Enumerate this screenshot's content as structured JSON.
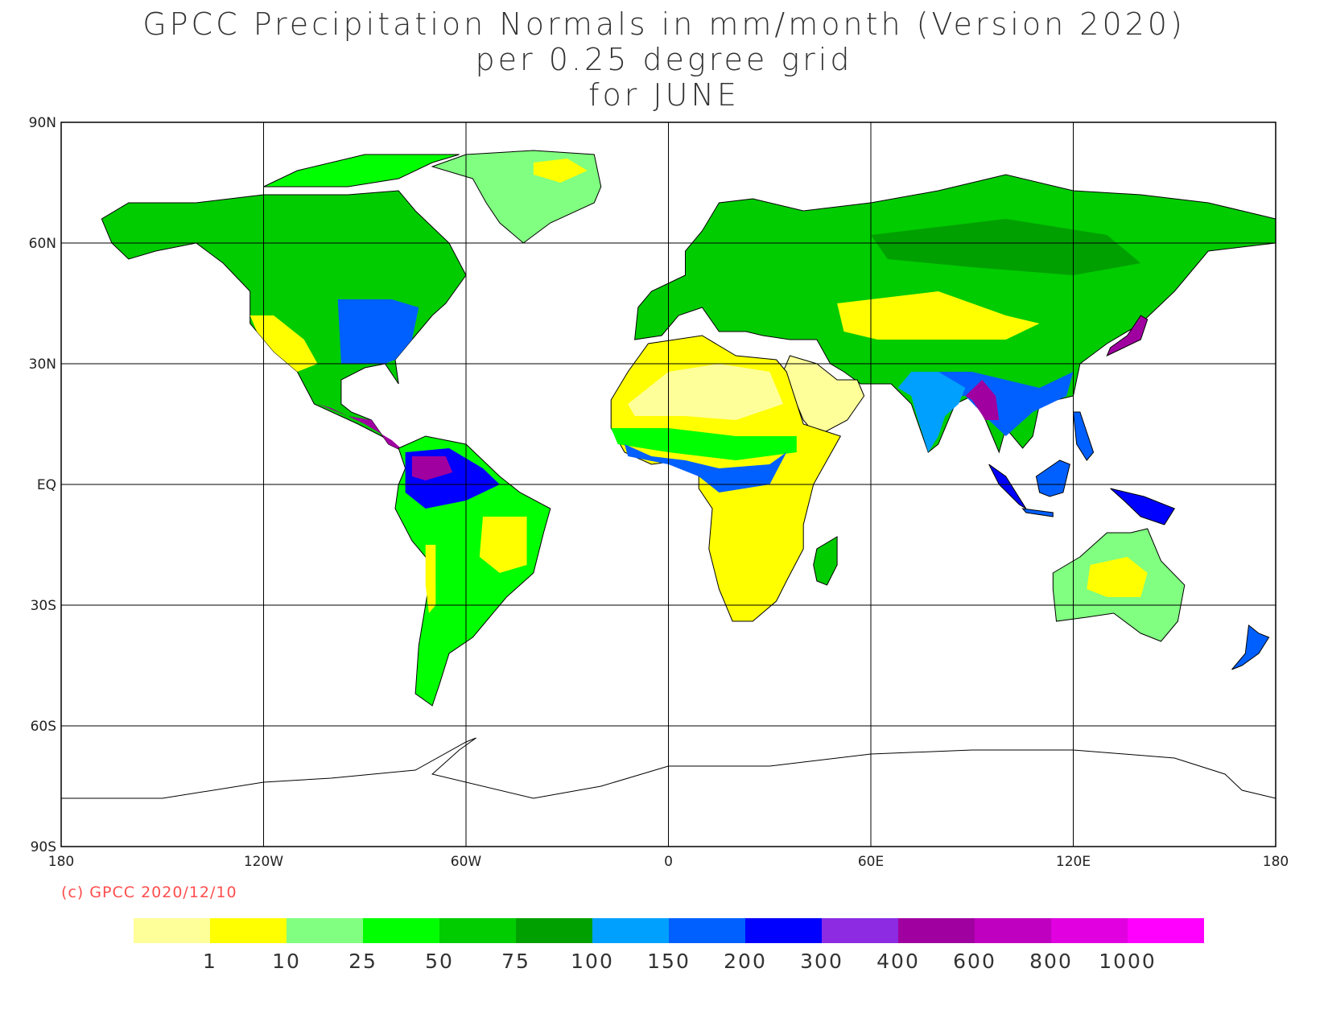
{
  "title": {
    "line1": "GPCC Precipitation Normals in mm/month (Version 2020)",
    "line2": "per 0.25 degree grid",
    "line3": "for JUNE"
  },
  "map": {
    "projection": "equirectangular",
    "lon_range": [
      -180,
      180
    ],
    "lat_range": [
      -90,
      90
    ],
    "lon_ticks": [
      {
        "lon": -180,
        "label": "180"
      },
      {
        "lon": -120,
        "label": "120W"
      },
      {
        "lon": -60,
        "label": "60W"
      },
      {
        "lon": 0,
        "label": "0"
      },
      {
        "lon": 60,
        "label": "60E"
      },
      {
        "lon": 120,
        "label": "120E"
      },
      {
        "lon": 180,
        "label": "180"
      }
    ],
    "lat_ticks": [
      {
        "lat": 90,
        "label": "90N"
      },
      {
        "lat": 60,
        "label": "60N"
      },
      {
        "lat": 30,
        "label": "30N"
      },
      {
        "lat": 0,
        "label": "EQ"
      },
      {
        "lat": -30,
        "label": "30S"
      },
      {
        "lat": -60,
        "label": "60S"
      },
      {
        "lat": -90,
        "label": "90S"
      }
    ],
    "grid": true
  },
  "copyright": "(c) GPCC 2020/12/10",
  "colorbar": {
    "colors": [
      "#ffff99",
      "#ffff00",
      "#80ff80",
      "#00ff00",
      "#00cc00",
      "#00a000",
      "#00a0ff",
      "#0060ff",
      "#0000ff",
      "#8c2be2",
      "#a000a0",
      "#c000c0",
      "#e000e0",
      "#ff00ff"
    ],
    "labels": [
      "1",
      "10",
      "25",
      "50",
      "75",
      "100",
      "150",
      "200",
      "300",
      "400",
      "600",
      "800",
      "1000"
    ]
  }
}
